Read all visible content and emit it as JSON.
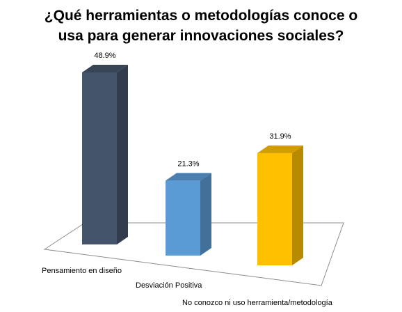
{
  "chart_data": {
    "type": "bar",
    "title": "¿Qué herramientas o metodologías conoce o\nusa para generar innovaciones sociales?",
    "categories": [
      "Pensamiento en diseño",
      "Desviación Positiva",
      "No conozco ni uso herramienta/metodología"
    ],
    "values": [
      48.9,
      21.3,
      31.9
    ],
    "value_labels": [
      "48.9%",
      "21.3%",
      "31.9%"
    ],
    "colors": [
      "#44546A",
      "#5B9BD5",
      "#FFC000"
    ],
    "style": "3d-column",
    "legend": "none",
    "grid": false,
    "xlabel": "",
    "ylabel": ""
  }
}
